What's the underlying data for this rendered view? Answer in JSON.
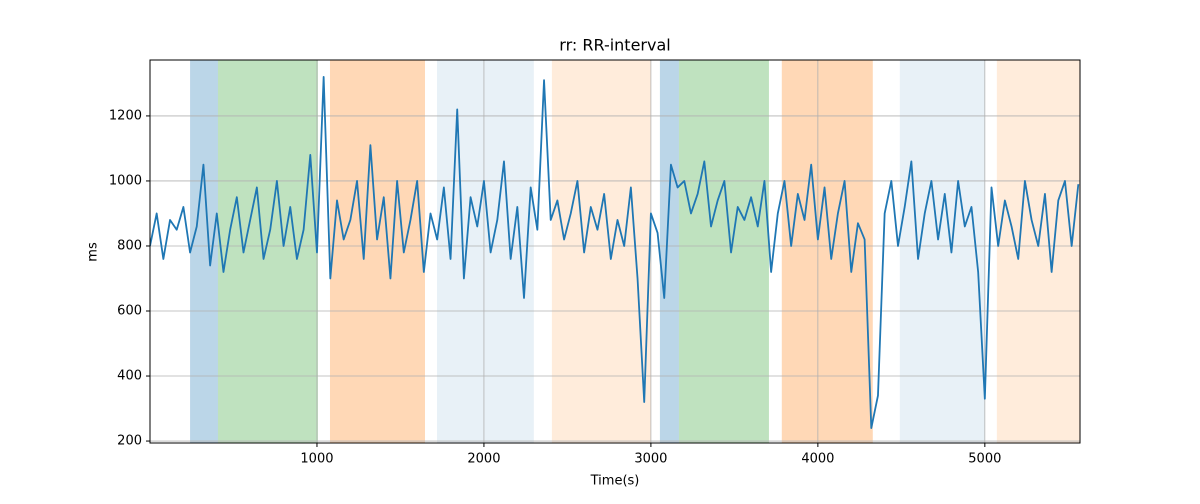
{
  "chart_data": {
    "type": "line",
    "title": "rr: RR-interval",
    "x_label": "Time(s)",
    "y_label": "ms",
    "xlim": [
      0,
      5570
    ],
    "ylim": [
      194,
      1372
    ],
    "xticks": [
      1000,
      2000,
      3000,
      4000,
      5000
    ],
    "yticks": [
      200,
      400,
      600,
      800,
      1000,
      1200
    ],
    "grid": true,
    "spans": [
      {
        "start": 240,
        "end": 407,
        "color": "#1f77b4",
        "opacity": 0.3
      },
      {
        "start": 407,
        "end": 1006,
        "color": "#2ca02c",
        "opacity": 0.3
      },
      {
        "start": 1078,
        "end": 1647,
        "color": "#ff7f0e",
        "opacity": 0.3
      },
      {
        "start": 1719,
        "end": 2299,
        "color": "#1f77b4",
        "opacity": 0.1
      },
      {
        "start": 2407,
        "end": 3000,
        "color": "#ff7f0e",
        "opacity": 0.15
      },
      {
        "start": 3054,
        "end": 3168,
        "color": "#1f77b4",
        "opacity": 0.3
      },
      {
        "start": 3168,
        "end": 3707,
        "color": "#2ca02c",
        "opacity": 0.3
      },
      {
        "start": 3784,
        "end": 4329,
        "color": "#ff7f0e",
        "opacity": 0.3
      },
      {
        "start": 4491,
        "end": 5000,
        "color": "#1f77b4",
        "opacity": 0.1
      },
      {
        "start": 5072,
        "end": 5570,
        "color": "#ff7f0e",
        "opacity": 0.15
      }
    ],
    "series": [
      {
        "color": "#1f77b4",
        "x": [
          0,
          40,
          80,
          120,
          160,
          200,
          240,
          280,
          320,
          360,
          400,
          440,
          480,
          520,
          560,
          600,
          640,
          680,
          720,
          760,
          800,
          840,
          880,
          920,
          960,
          1000,
          1040,
          1080,
          1120,
          1160,
          1200,
          1240,
          1280,
          1320,
          1360,
          1400,
          1440,
          1480,
          1520,
          1560,
          1600,
          1640,
          1680,
          1720,
          1760,
          1800,
          1840,
          1880,
          1920,
          1960,
          2000,
          2040,
          2080,
          2120,
          2160,
          2200,
          2240,
          2280,
          2320,
          2360,
          2400,
          2440,
          2480,
          2520,
          2560,
          2600,
          2640,
          2680,
          2720,
          2760,
          2800,
          2840,
          2880,
          2920,
          2960,
          3000,
          3040,
          3080,
          3120,
          3160,
          3200,
          3240,
          3280,
          3320,
          3360,
          3400,
          3440,
          3480,
          3520,
          3560,
          3600,
          3640,
          3680,
          3720,
          3760,
          3800,
          3840,
          3880,
          3920,
          3960,
          4000,
          4040,
          4080,
          4120,
          4160,
          4200,
          4240,
          4280,
          4320,
          4360,
          4400,
          4440,
          4480,
          4520,
          4560,
          4600,
          4640,
          4680,
          4720,
          4760,
          4800,
          4840,
          4880,
          4920,
          4960,
          5000,
          5040,
          5080,
          5120,
          5160,
          5200,
          5240,
          5280,
          5320,
          5360,
          5400,
          5440,
          5480,
          5520,
          5560
        ],
        "values": [
          800,
          900,
          760,
          880,
          850,
          920,
          780,
          860,
          1050,
          740,
          900,
          720,
          850,
          950,
          780,
          880,
          980,
          760,
          850,
          1000,
          800,
          920,
          760,
          850,
          1080,
          780,
          1320,
          700,
          940,
          820,
          880,
          1000,
          760,
          1110,
          820,
          950,
          700,
          1000,
          780,
          880,
          1000,
          720,
          900,
          820,
          980,
          760,
          1220,
          700,
          950,
          860,
          1000,
          780,
          880,
          1060,
          760,
          920,
          640,
          980,
          850,
          1310,
          880,
          940,
          820,
          900,
          1000,
          780,
          920,
          850,
          960,
          760,
          880,
          800,
          980,
          700,
          320,
          900,
          840,
          640,
          1050,
          980,
          1000,
          900,
          960,
          1060,
          860,
          940,
          1000,
          780,
          920,
          880,
          950,
          860,
          1000,
          720,
          900,
          1000,
          800,
          960,
          880,
          1050,
          820,
          980,
          760,
          900,
          1000,
          720,
          870,
          820,
          240,
          340,
          900,
          1000,
          800,
          920,
          1060,
          760,
          900,
          1000,
          820,
          960,
          780,
          1000,
          860,
          920,
          720,
          330,
          980,
          800,
          940,
          860,
          760,
          1000,
          880,
          800,
          960,
          720,
          940,
          1000,
          800,
          990
        ]
      }
    ]
  }
}
